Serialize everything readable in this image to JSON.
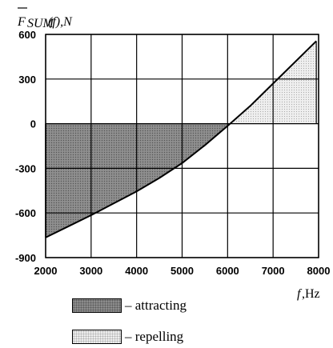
{
  "chart_data": {
    "type": "area",
    "ylabel_parts": {
      "prefix": "F",
      "subscript": "SUM",
      "suffix": " (f),N"
    },
    "xlabel_parts": {
      "var": "f",
      "unit": ",Hz"
    },
    "x": [
      2000,
      2500,
      3000,
      3500,
      4000,
      4500,
      5000,
      5500,
      6000,
      6500,
      7000,
      7500,
      7950
    ],
    "y": [
      -765,
      -690,
      -615,
      -535,
      -455,
      -365,
      -265,
      -145,
      -15,
      120,
      270,
      420,
      555
    ],
    "xlim": [
      2000,
      8000
    ],
    "ylim": [
      -900,
      600
    ],
    "xticks": [
      "2000",
      "3000",
      "4000",
      "5000",
      "6000",
      "7000",
      "8000"
    ],
    "yticks": [
      "600",
      "300",
      "0",
      "-300",
      "-600",
      "-900"
    ],
    "grid": true,
    "legend": [
      {
        "label": "– attracting",
        "fill": "dark-dotted"
      },
      {
        "label": "– repelling",
        "fill": "light-dotted"
      }
    ]
  }
}
